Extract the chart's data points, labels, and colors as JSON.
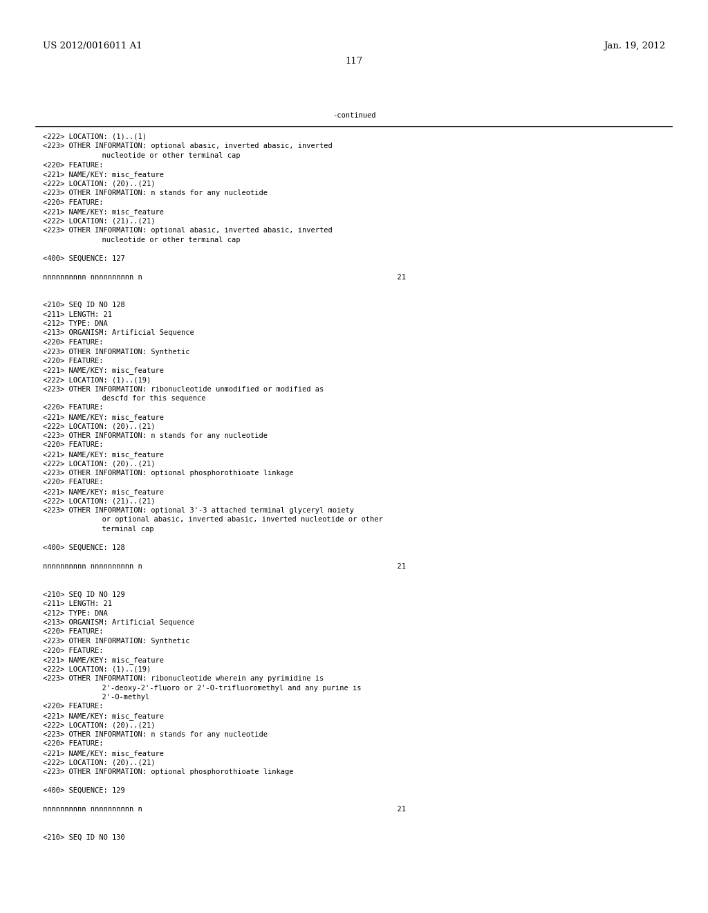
{
  "header_left": "US 2012/0016011 A1",
  "header_right": "Jan. 19, 2012",
  "page_number": "117",
  "continued_text": "-continued",
  "background_color": "#ffffff",
  "text_color": "#000000",
  "font_size": 7.5,
  "header_font_size": 9.5,
  "page_num_font_size": 9.5,
  "content_lines": [
    [
      "<222> LOCATION: (1)..(1)",
      false
    ],
    [
      "<223> OTHER INFORMATION: optional abasic, inverted abasic, inverted",
      false
    ],
    [
      "      nucleotide or other terminal cap",
      true
    ],
    [
      "<220> FEATURE:",
      false
    ],
    [
      "<221> NAME/KEY: misc_feature",
      false
    ],
    [
      "<222> LOCATION: (20)..(21)",
      false
    ],
    [
      "<223> OTHER INFORMATION: n stands for any nucleotide",
      false
    ],
    [
      "<220> FEATURE:",
      false
    ],
    [
      "<221> NAME/KEY: misc_feature",
      false
    ],
    [
      "<222> LOCATION: (21)..(21)",
      false
    ],
    [
      "<223> OTHER INFORMATION: optional abasic, inverted abasic, inverted",
      false
    ],
    [
      "      nucleotide or other terminal cap",
      true
    ],
    [
      "",
      false
    ],
    [
      "<400> SEQUENCE: 127",
      false
    ],
    [
      "",
      false
    ],
    [
      "nnnnnnnnnn nnnnnnnnnn n                                                           21",
      false
    ],
    [
      "",
      false
    ],
    [
      "",
      false
    ],
    [
      "<210> SEQ ID NO 128",
      false
    ],
    [
      "<211> LENGTH: 21",
      false
    ],
    [
      "<212> TYPE: DNA",
      false
    ],
    [
      "<213> ORGANISM: Artificial Sequence",
      false
    ],
    [
      "<220> FEATURE:",
      false
    ],
    [
      "<223> OTHER INFORMATION: Synthetic",
      false
    ],
    [
      "<220> FEATURE:",
      false
    ],
    [
      "<221> NAME/KEY: misc_feature",
      false
    ],
    [
      "<222> LOCATION: (1)..(19)",
      false
    ],
    [
      "<223> OTHER INFORMATION: ribonucleotide unmodified or modified as",
      false
    ],
    [
      "      descfd for this sequence",
      true
    ],
    [
      "<220> FEATURE:",
      false
    ],
    [
      "<221> NAME/KEY: misc_feature",
      false
    ],
    [
      "<222> LOCATION: (20)..(21)",
      false
    ],
    [
      "<223> OTHER INFORMATION: n stands for any nucleotide",
      false
    ],
    [
      "<220> FEATURE:",
      false
    ],
    [
      "<221> NAME/KEY: misc_feature",
      false
    ],
    [
      "<222> LOCATION: (20)..(21)",
      false
    ],
    [
      "<223> OTHER INFORMATION: optional phosphorothioate linkage",
      false
    ],
    [
      "<220> FEATURE:",
      false
    ],
    [
      "<221> NAME/KEY: misc_feature",
      false
    ],
    [
      "<222> LOCATION: (21)..(21)",
      false
    ],
    [
      "<223> OTHER INFORMATION: optional 3'-3 attached terminal glyceryl moiety",
      false
    ],
    [
      "      or optional abasic, inverted abasic, inverted nucleotide or other",
      true
    ],
    [
      "      terminal cap",
      true
    ],
    [
      "",
      false
    ],
    [
      "<400> SEQUENCE: 128",
      false
    ],
    [
      "",
      false
    ],
    [
      "nnnnnnnnnn nnnnnnnnnn n                                                           21",
      false
    ],
    [
      "",
      false
    ],
    [
      "",
      false
    ],
    [
      "<210> SEQ ID NO 129",
      false
    ],
    [
      "<211> LENGTH: 21",
      false
    ],
    [
      "<212> TYPE: DNA",
      false
    ],
    [
      "<213> ORGANISM: Artificial Sequence",
      false
    ],
    [
      "<220> FEATURE:",
      false
    ],
    [
      "<223> OTHER INFORMATION: Synthetic",
      false
    ],
    [
      "<220> FEATURE:",
      false
    ],
    [
      "<221> NAME/KEY: misc_feature",
      false
    ],
    [
      "<222> LOCATION: (1)..(19)",
      false
    ],
    [
      "<223> OTHER INFORMATION: ribonucleotide wherein any pyrimidine is",
      false
    ],
    [
      "      2'-deoxy-2'-fluoro or 2'-O-trifluoromethyl and any purine is",
      true
    ],
    [
      "      2'-O-methyl",
      true
    ],
    [
      "<220> FEATURE:",
      false
    ],
    [
      "<221> NAME/KEY: misc_feature",
      false
    ],
    [
      "<222> LOCATION: (20)..(21)",
      false
    ],
    [
      "<223> OTHER INFORMATION: n stands for any nucleotide",
      false
    ],
    [
      "<220> FEATURE:",
      false
    ],
    [
      "<221> NAME/KEY: misc_feature",
      false
    ],
    [
      "<222> LOCATION: (20)..(21)",
      false
    ],
    [
      "<223> OTHER INFORMATION: optional phosphorothioate linkage",
      false
    ],
    [
      "",
      false
    ],
    [
      "<400> SEQUENCE: 129",
      false
    ],
    [
      "",
      false
    ],
    [
      "nnnnnnnnnn nnnnnnnnnn n                                                           21",
      false
    ],
    [
      "",
      false
    ],
    [
      "",
      false
    ],
    [
      "<210> SEQ ID NO 130",
      false
    ]
  ]
}
